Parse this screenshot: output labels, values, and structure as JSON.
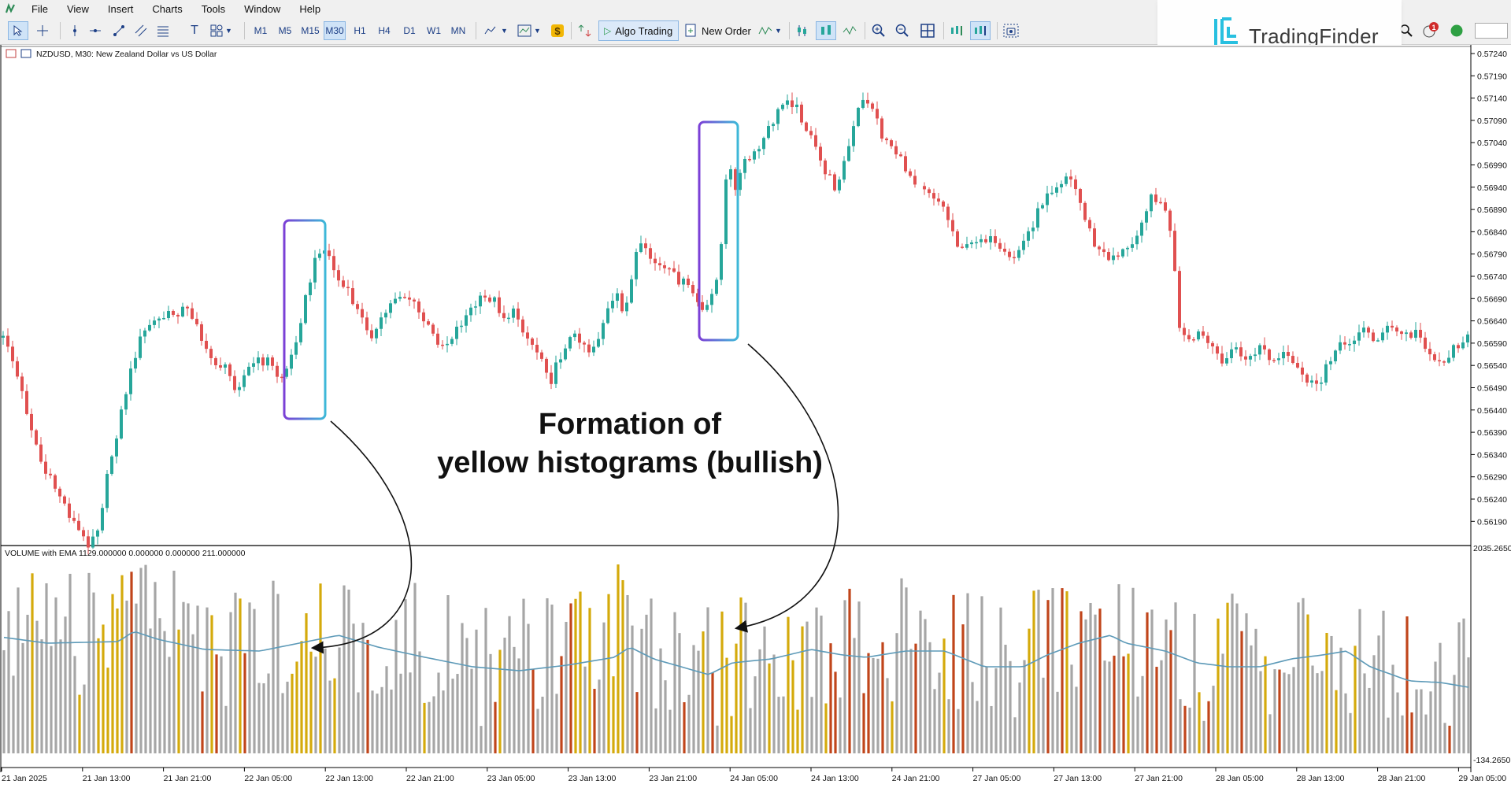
{
  "menu": [
    "File",
    "View",
    "Insert",
    "Charts",
    "Tools",
    "Window",
    "Help"
  ],
  "toolbar": {
    "timeframes": [
      "M1",
      "M5",
      "M15",
      "M30",
      "H1",
      "H4",
      "D1",
      "W1",
      "MN"
    ],
    "active_timeframe": "M30",
    "algo_trading_label": "Algo Trading",
    "new_order_label": "New Order",
    "notification_count": "1"
  },
  "logo": {
    "text": "TradingFinder",
    "accent": "#28c0e0"
  },
  "chart": {
    "title": "NZDUSD, M30:  New Zealand Dollar vs US Dollar",
    "price_ticks": [
      "0.57240",
      "0.57190",
      "0.57140",
      "0.57090",
      "0.57040",
      "0.56990",
      "0.56940",
      "0.56890",
      "0.56840",
      "0.56790",
      "0.56740",
      "0.56690",
      "0.56640",
      "0.56590",
      "0.56540",
      "0.56490",
      "0.56440",
      "0.56390",
      "0.56340",
      "0.56290",
      "0.56240",
      "0.56190"
    ],
    "time_ticks": [
      "21 Jan 2025",
      "21 Jan 13:00",
      "21 Jan 21:00",
      "22 Jan 05:00",
      "22 Jan 13:00",
      "22 Jan 21:00",
      "23 Jan 05:00",
      "23 Jan 13:00",
      "23 Jan 21:00",
      "24 Jan 05:00",
      "24 Jan 13:00",
      "24 Jan 21:00",
      "27 Jan 05:00",
      "27 Jan 13:00",
      "27 Jan 21:00",
      "28 Jan 05:00",
      "28 Jan 13:00",
      "28 Jan 21:00",
      "29 Jan 05:00"
    ],
    "bull_color": "#26a69a",
    "bear_color": "#e05050"
  },
  "indicator": {
    "label": "VOLUME with EMA 1129.000000 0.000000 0.000000 211.000000",
    "scale_top": "2035.2650",
    "scale_bottom": "-134.2650",
    "colors": {
      "gray": "#a6a6a6",
      "yellow": "#d4aa0c",
      "red": "#c0451b",
      "ema": "#5d9ab8"
    }
  },
  "annotation": {
    "line1": "Formation of",
    "line2": "yellow histograms (bullish)",
    "box_colors": [
      "#7b3fd6",
      "#3db8d8"
    ]
  }
}
